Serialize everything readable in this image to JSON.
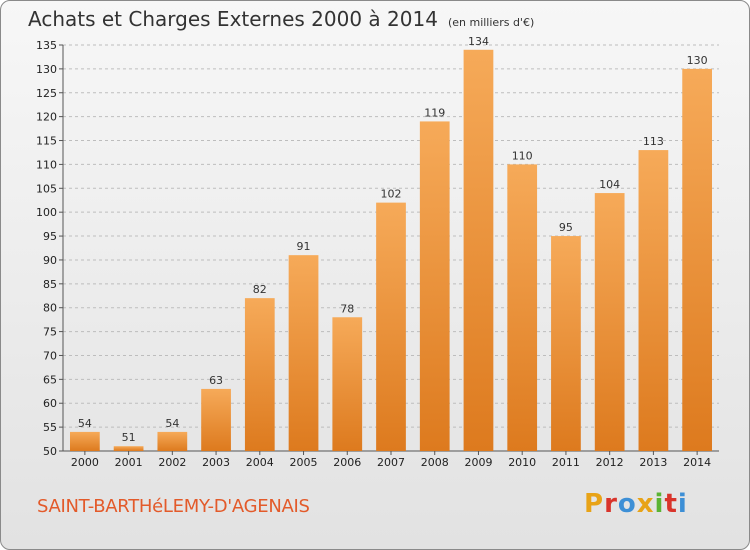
{
  "header": {
    "title": "Achats et Charges Externes 2000 à 2014",
    "units": "(en milliers d'€)"
  },
  "footer": {
    "commune": "SAINT-BARTHéLEMY-D'AGENAIS",
    "logo_text": "Proxiti",
    "logo_colors": [
      "#e8a317",
      "#d9342b",
      "#3d8fd6",
      "#e8a317",
      "#5bb434",
      "#d9342b",
      "#3d8fd6"
    ]
  },
  "colors": {
    "bar_light": "#f6aa59",
    "bar_dark": "#dd7a1e",
    "grid": "#bdbdbd",
    "axis": "#555555"
  },
  "chart_data": {
    "type": "bar",
    "title": "Achats et Charges Externes 2000 à 2014",
    "subtitle": "(en milliers d'€)",
    "categories": [
      "2000",
      "2001",
      "2002",
      "2003",
      "2004",
      "2005",
      "2006",
      "2007",
      "2008",
      "2009",
      "2010",
      "2011",
      "2012",
      "2013",
      "2014"
    ],
    "values": [
      54,
      51,
      54,
      63,
      82,
      91,
      78,
      102,
      119,
      134,
      110,
      95,
      104,
      113,
      130
    ],
    "ylim": [
      50,
      135
    ],
    "yticks": [
      50,
      55,
      60,
      65,
      70,
      75,
      80,
      85,
      90,
      95,
      100,
      105,
      110,
      115,
      120,
      125,
      130,
      135
    ],
    "grid": true,
    "data_labels": true
  }
}
